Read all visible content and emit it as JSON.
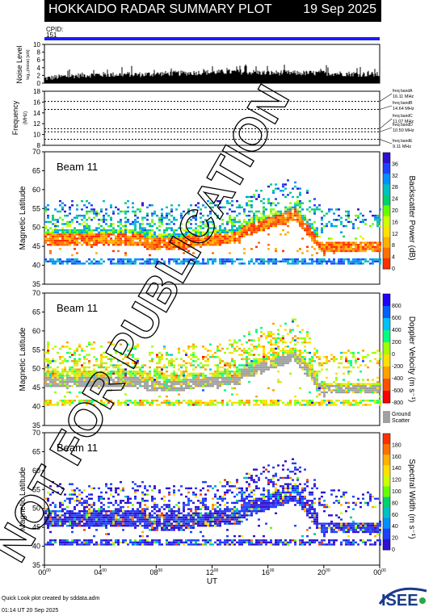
{
  "header": {
    "title": "HOKKAIDO RADAR SUMMARY PLOT",
    "date": "19 Sep 2025",
    "cpid_label": "CPID:",
    "cpid_value": "151"
  },
  "footer": {
    "line1": "Quick Look plot created by sddata.adm",
    "line2": "01:14 UT 20 Sep 2025",
    "logo_text": "ISEE"
  },
  "watermark": "NOT FOR PUBLICATION",
  "colors": {
    "cpid_bar": "#1a1aff",
    "ground_scatter": "#a0a0a0",
    "backscatter_scale": [
      "#ff3000",
      "#ff7000",
      "#ffb000",
      "#ffe000",
      "#ccff00",
      "#66ff00",
      "#00d070",
      "#00c0c0",
      "#0090ff",
      "#2040ff",
      "#3010d0"
    ],
    "velocity_scale": [
      "#ff0000",
      "#ff5000",
      "#ffa000",
      "#ffe000",
      "#a0ff00",
      "#00ff80",
      "#00c0ff",
      "#0060ff",
      "#2000ff"
    ],
    "width_scale": [
      "#3010d0",
      "#2040ff",
      "#0090ff",
      "#00c0c0",
      "#00d070",
      "#66ff00",
      "#ccff00",
      "#ffe000",
      "#ffb000",
      "#ff7000",
      "#ff3000"
    ]
  },
  "chart_data": [
    {
      "type": "line",
      "panel": "noise",
      "ylabel": "Noise Level",
      "ylabel_sub": "log₁₀(noise) [arb]",
      "ylim": [
        0,
        10
      ],
      "yticks": [
        "0",
        "2",
        "4",
        "6",
        "8",
        "10"
      ],
      "x_hours": [
        0,
        1,
        2,
        3,
        4,
        5,
        6,
        7,
        8,
        9,
        10,
        11,
        12,
        13,
        14,
        15,
        16,
        17,
        18,
        19,
        20,
        21,
        22,
        23,
        24
      ],
      "values": [
        1.2,
        1.6,
        1.9,
        2.1,
        2.2,
        2.2,
        2.3,
        2.2,
        2.4,
        2.5,
        2.6,
        2.7,
        2.8,
        2.9,
        2.9,
        2.8,
        2.6,
        2.7,
        2.6,
        2.6,
        2.6,
        2.5,
        2.4,
        2.3,
        2.2
      ]
    },
    {
      "type": "line",
      "panel": "frequency",
      "ylabel": "Frequency",
      "ylabel_sub": "(MHz)",
      "ylim": [
        8,
        18
      ],
      "yticks": [
        "8",
        "10",
        "12",
        "14",
        "16",
        "18"
      ],
      "bands": [
        {
          "label": "freq bandA",
          "value": "16.11 MHz",
          "mhz": 16.11
        },
        {
          "label": "freq bandB",
          "value": "14.64 MHz",
          "mhz": 14.64
        },
        {
          "label": "freq bandC",
          "value": "11.07 MHz",
          "mhz": 11.07
        },
        {
          "label": "freq bandD",
          "value": "10.50 MHz",
          "mhz": 10.5
        },
        {
          "label": "freq bandE",
          "value": "9.11 MHz",
          "mhz": 9.11
        }
      ]
    },
    {
      "type": "heatmap",
      "panel": "power",
      "beam": "Beam 11",
      "ylabel": "Magnetic Latitude",
      "ylim": [
        35,
        70
      ],
      "yticks": [
        "35",
        "40",
        "45",
        "50",
        "55",
        "60",
        "65",
        "70"
      ],
      "colorbar_label": "Backscatter Power (dB)",
      "colorbar_ticks": [
        "0",
        "4",
        "8",
        "12",
        "16",
        "20",
        "24",
        "28",
        "32",
        "36"
      ]
    },
    {
      "type": "heatmap",
      "panel": "velocity",
      "beam": "Beam 11",
      "ylabel": "Magnetic Latitude",
      "ylim": [
        35,
        70
      ],
      "yticks": [
        "35",
        "40",
        "45",
        "50",
        "55",
        "60",
        "65",
        "70"
      ],
      "colorbar_label": "Doppler Velocity (m s⁻¹)",
      "colorbar_ticks": [
        "-800",
        "-600",
        "-400",
        "-200",
        "0",
        "200",
        "400",
        "600",
        "800"
      ],
      "ground_label": "Ground",
      "scatter_label": "Scatter"
    },
    {
      "type": "heatmap",
      "panel": "width",
      "beam": "Beam 11",
      "ylabel": "Magnetic Latitude",
      "ylim": [
        35,
        70
      ],
      "yticks": [
        "35",
        "40",
        "45",
        "50",
        "55",
        "60",
        "65",
        "70"
      ],
      "colorbar_label": "Spectral Width (m s⁻¹)",
      "colorbar_ticks": [
        "0",
        "20",
        "40",
        "60",
        "80",
        "100",
        "120",
        "140",
        "160",
        "180"
      ],
      "x_ticks": [
        "00",
        "04",
        "08",
        "12",
        "16",
        "20",
        "00"
      ],
      "x_tick_sup": "00",
      "xlabel": "UT"
    }
  ]
}
